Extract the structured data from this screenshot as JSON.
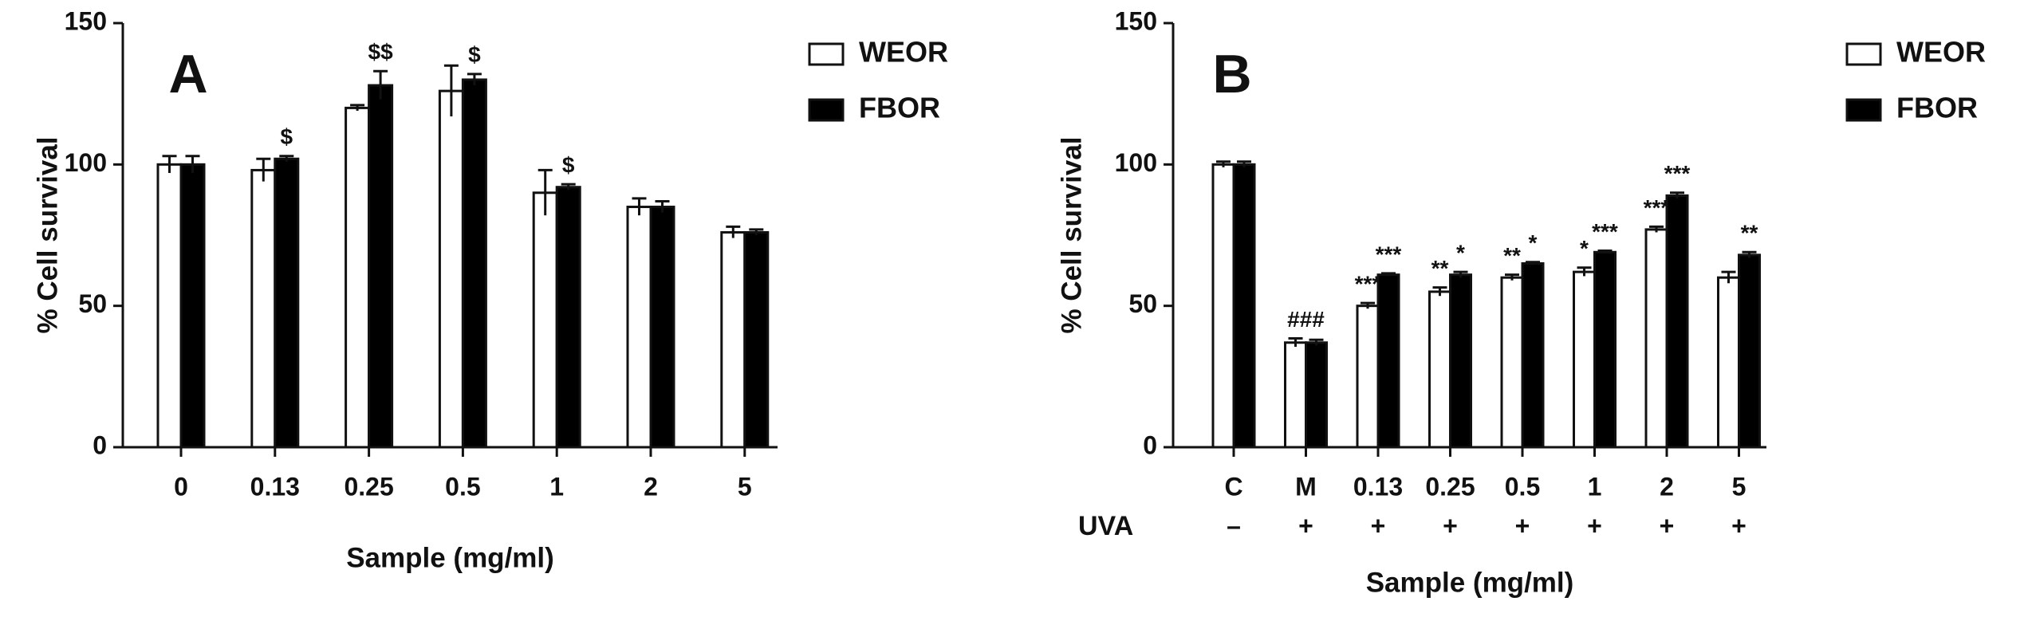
{
  "chart_data": [
    {
      "type": "bar",
      "panel_label": "A",
      "y_label": "% Cell survival",
      "x_label": "Sample (mg/ml)",
      "categories": [
        "0",
        "0.13",
        "0.25",
        "0.5",
        "1",
        "2",
        "5"
      ],
      "series": [
        {
          "name": "WEOR",
          "color": "#ffffff",
          "values": [
            100,
            98,
            120,
            126,
            90,
            85,
            76
          ],
          "errors": [
            3,
            4,
            1,
            9,
            8,
            3,
            2
          ],
          "annotations": [
            null,
            null,
            null,
            null,
            null,
            null,
            null
          ]
        },
        {
          "name": "FBOR",
          "color": "#000000",
          "values": [
            100,
            102,
            128,
            130,
            92,
            85,
            76
          ],
          "errors": [
            3,
            1,
            5,
            2,
            1,
            2,
            1
          ],
          "annotations": [
            null,
            "$",
            "$$",
            "$",
            "$",
            null,
            null
          ]
        }
      ],
      "ylim": [
        0,
        150
      ],
      "yticks": [
        0,
        50,
        100,
        150
      ]
    },
    {
      "type": "bar",
      "panel_label": "B",
      "y_label": "% Cell survival",
      "x_label": "Sample (mg/ml)",
      "categories": [
        "C",
        "M",
        "0.13",
        "0.25",
        "0.5",
        "1",
        "2",
        "5"
      ],
      "row_label": "UVA",
      "row_values": [
        "–",
        "+",
        "+",
        "+",
        "+",
        "+",
        "+",
        "+"
      ],
      "series": [
        {
          "name": "WEOR",
          "color": "#ffffff",
          "values": [
            100,
            37,
            50,
            55,
            60,
            62,
            77,
            60
          ],
          "errors": [
            1,
            1.5,
            1,
            1.5,
            1,
            1.5,
            1,
            2
          ],
          "annotations": [
            null,
            "###",
            "***",
            "**",
            "**",
            "*",
            "***",
            null
          ]
        },
        {
          "name": "FBOR",
          "color": "#000000",
          "values": [
            100,
            37,
            61,
            61,
            65,
            69,
            89,
            68
          ],
          "errors": [
            1,
            1,
            0.5,
            1,
            0.5,
            0.5,
            1,
            1
          ],
          "annotations": [
            null,
            null,
            "***",
            "*",
            "*",
            "***",
            "***",
            "**"
          ]
        }
      ],
      "ylim": [
        0,
        150
      ],
      "yticks": [
        0,
        50,
        100,
        150
      ]
    }
  ]
}
